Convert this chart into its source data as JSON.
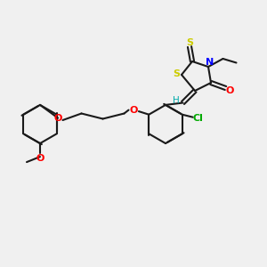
{
  "background_color": "#f0f0f0",
  "bond_color": "#1a1a1a",
  "atom_colors": {
    "S": "#cccc00",
    "N": "#0000ff",
    "O": "#ff0000",
    "Cl": "#00aa00",
    "H": "#00aaaa",
    "C_double_bond": "#1a1a1a"
  },
  "figsize": [
    3.0,
    3.0
  ],
  "dpi": 100
}
